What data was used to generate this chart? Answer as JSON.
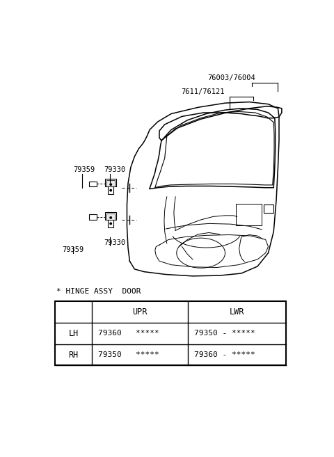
{
  "bg_color": "#ffffff",
  "label_top_right_1": "76003/76004",
  "label_top_right_2": "7611/76121",
  "label_upper_hinge_number": "79330",
  "label_upper_hinge_label": "79359",
  "label_lower_hinge_number": "79330",
  "label_lower_hinge_label": "79359",
  "table_title": "* HINGE ASSY  DOOR",
  "table_col2": "UPR",
  "table_col3": "LWR",
  "table_row1_col1": "LH",
  "table_row1_col2": "79360   *****",
  "table_row1_col3": "79350 - *****",
  "table_row2_col1": "RH",
  "table_row2_col2": "79350   *****",
  "table_row2_col3": "79360 - *****"
}
